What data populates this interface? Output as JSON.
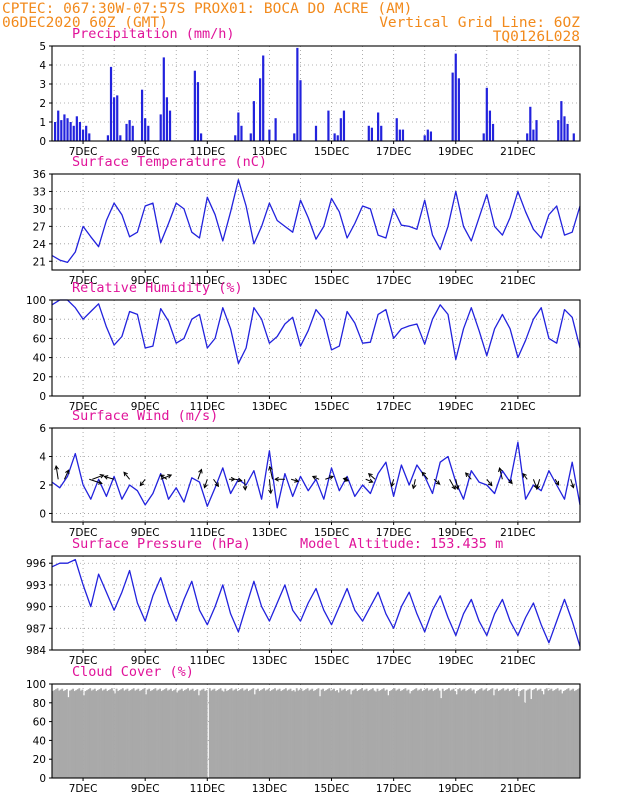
{
  "header": {
    "line1": "CPTEC:   067:30W-07:57S   PROX01: BOCA DO ACRE (AM)",
    "line2_left": "06DEC2020 60Z (GMT)",
    "line2_right": "Vertical Grid Line: 6OZ",
    "line3_right": "TQ0126L028"
  },
  "x_ticks": [
    "7DEC",
    "9DEC",
    "11DEC",
    "13DEC",
    "15DEC",
    "17DEC",
    "19DEC",
    "21DEC"
  ],
  "colors": {
    "header": "#f28a1c",
    "title": "#e0149a",
    "series": "#2222dd",
    "cloud": "#a9a9a9"
  },
  "chart_data": [
    {
      "type": "bar",
      "title": "Precipitation (mm/h)",
      "ylim": [
        0,
        5
      ],
      "yticks": [
        0,
        1,
        2,
        3,
        4,
        5
      ],
      "x_unit": "days since 6DEC 00Z",
      "x": [
        0.1,
        0.2,
        0.3,
        0.4,
        0.5,
        0.6,
        0.7,
        0.8,
        0.9,
        1.0,
        1.1,
        1.2,
        1.8,
        1.9,
        2.0,
        2.1,
        2.2,
        2.4,
        2.5,
        2.6,
        2.9,
        3.0,
        3.1,
        3.5,
        3.6,
        3.7,
        3.8,
        4.6,
        4.7,
        4.8,
        5.9,
        6.0,
        6.1,
        6.4,
        6.5,
        6.7,
        6.8,
        7.0,
        7.2,
        7.8,
        7.9,
        8.0,
        8.5,
        8.9,
        9.1,
        9.2,
        9.3,
        9.4,
        10.2,
        10.3,
        10.5,
        10.6,
        11.1,
        11.2,
        11.3,
        12.0,
        12.1,
        12.2,
        12.9,
        13.0,
        13.1,
        13.9,
        14.0,
        14.1,
        14.2,
        15.3,
        15.4,
        15.5,
        15.6,
        16.3,
        16.4,
        16.5,
        16.6,
        16.8
      ],
      "values": [
        1.0,
        1.6,
        1.1,
        1.4,
        1.2,
        1.0,
        0.8,
        1.3,
        1.0,
        0.6,
        0.8,
        0.4,
        0.3,
        3.9,
        2.3,
        2.4,
        0.3,
        0.9,
        1.1,
        0.8,
        2.7,
        1.2,
        0.8,
        1.4,
        4.4,
        2.3,
        1.6,
        3.7,
        3.1,
        0.4,
        0.3,
        1.5,
        0.8,
        0.4,
        2.1,
        3.3,
        4.5,
        0.6,
        1.2,
        0.4,
        4.9,
        3.2,
        0.8,
        1.6,
        0.4,
        0.3,
        1.2,
        1.6,
        0.8,
        0.7,
        1.5,
        0.8,
        1.2,
        0.6,
        0.6,
        0.3,
        0.6,
        0.5,
        3.6,
        4.6,
        3.3,
        0.4,
        2.8,
        1.6,
        0.9,
        0.4,
        1.8,
        0.6,
        1.1,
        1.1,
        2.1,
        1.3,
        0.9,
        0.4
      ]
    },
    {
      "type": "line",
      "title": "Surface Temperature (nC)",
      "ylim": [
        19.5,
        36
      ],
      "yticks": [
        21,
        24,
        27,
        30,
        33,
        36
      ],
      "x_unit": "days since 6DEC 00Z",
      "x": [
        0.0,
        0.25,
        0.5,
        0.75,
        1.0,
        1.25,
        1.5,
        1.75,
        2.0,
        2.25,
        2.5,
        2.75,
        3.0,
        3.25,
        3.5,
        3.75,
        4.0,
        4.25,
        4.5,
        4.75,
        5.0,
        5.25,
        5.5,
        5.75,
        6.0,
        6.25,
        6.5,
        6.75,
        7.0,
        7.25,
        7.5,
        7.75,
        8.0,
        8.25,
        8.5,
        8.75,
        9.0,
        9.25,
        9.5,
        9.75,
        10.0,
        10.25,
        10.5,
        10.75,
        11.0,
        11.25,
        11.5,
        11.75,
        12.0,
        12.25,
        12.5,
        12.75,
        13.0,
        13.25,
        13.5,
        13.75,
        14.0,
        14.25,
        14.5,
        14.75,
        15.0,
        15.25,
        15.5,
        15.75,
        16.0,
        16.25,
        16.5,
        16.75,
        17.0
      ],
      "values": [
        22.0,
        21.2,
        20.8,
        22.6,
        27.0,
        25.2,
        23.5,
        28.0,
        31.0,
        29.0,
        25.2,
        26.0,
        30.5,
        31.0,
        24.2,
        27.5,
        31.0,
        30.0,
        26.0,
        25.0,
        32.0,
        29.0,
        24.5,
        29.5,
        35.0,
        30.5,
        24.0,
        27.0,
        31.0,
        28.0,
        27.0,
        26.0,
        31.5,
        28.5,
        24.8,
        27.0,
        31.8,
        29.5,
        25.0,
        27.5,
        30.5,
        30.0,
        25.5,
        25.0,
        30.0,
        27.2,
        27.0,
        26.5,
        31.5,
        25.5,
        23.0,
        27.0,
        33.0,
        27.0,
        24.5,
        28.5,
        32.5,
        27.0,
        25.5,
        28.5,
        33.0,
        29.5,
        26.5,
        25.0,
        29.0,
        30.5,
        25.5,
        26.0,
        30.5
      ]
    },
    {
      "type": "line",
      "title": "Relative Humidity (%)",
      "ylim": [
        0,
        100
      ],
      "yticks": [
        0,
        20,
        40,
        60,
        80,
        100
      ],
      "x_unit": "days since 6DEC 00Z",
      "x": [
        0.0,
        0.25,
        0.5,
        0.75,
        1.0,
        1.25,
        1.5,
        1.75,
        2.0,
        2.25,
        2.5,
        2.75,
        3.0,
        3.25,
        3.5,
        3.75,
        4.0,
        4.25,
        4.5,
        4.75,
        5.0,
        5.25,
        5.5,
        5.75,
        6.0,
        6.25,
        6.5,
        6.75,
        7.0,
        7.25,
        7.5,
        7.75,
        8.0,
        8.25,
        8.5,
        8.75,
        9.0,
        9.25,
        9.5,
        9.75,
        10.0,
        10.25,
        10.5,
        10.75,
        11.0,
        11.25,
        11.5,
        11.75,
        12.0,
        12.25,
        12.5,
        12.75,
        13.0,
        13.25,
        13.5,
        13.75,
        14.0,
        14.25,
        14.5,
        14.75,
        15.0,
        15.25,
        15.5,
        15.75,
        16.0,
        16.25,
        16.5,
        16.75,
        17.0
      ],
      "values": [
        95.0,
        100.0,
        100.0,
        92.0,
        80.0,
        88.0,
        96.0,
        72.0,
        53.0,
        62.0,
        88.0,
        85.0,
        50.0,
        52.0,
        91.0,
        78.0,
        55.0,
        60.0,
        80.0,
        85.0,
        50.0,
        60.0,
        92.0,
        70.0,
        34.0,
        50.0,
        92.0,
        80.0,
        55.0,
        62.0,
        75.0,
        82.0,
        52.0,
        68.0,
        90.0,
        80.0,
        48.0,
        52.0,
        88.0,
        76.0,
        55.0,
        56.0,
        85.0,
        90.0,
        60.0,
        70.0,
        73.0,
        75.0,
        54.0,
        80.0,
        95.0,
        85.0,
        38.0,
        70.0,
        92.0,
        68.0,
        42.0,
        70.0,
        85.0,
        70.0,
        40.0,
        58.0,
        80.0,
        92.0,
        60.0,
        55.0,
        90.0,
        82.0,
        50.0
      ]
    },
    {
      "type": "line",
      "title": "Surface Wind (m/s)",
      "ylim": [
        -0.6,
        6
      ],
      "yticks": [
        0,
        2,
        4,
        6
      ],
      "x_unit": "days since 6DEC 00Z",
      "x": [
        0.0,
        0.25,
        0.5,
        0.75,
        1.0,
        1.25,
        1.5,
        1.75,
        2.0,
        2.25,
        2.5,
        2.75,
        3.0,
        3.25,
        3.5,
        3.75,
        4.0,
        4.25,
        4.5,
        4.75,
        5.0,
        5.25,
        5.5,
        5.75,
        6.0,
        6.25,
        6.5,
        6.75,
        7.0,
        7.25,
        7.5,
        7.75,
        8.0,
        8.25,
        8.5,
        8.75,
        9.0,
        9.25,
        9.5,
        9.75,
        10.0,
        10.25,
        10.5,
        10.75,
        11.0,
        11.25,
        11.5,
        11.75,
        12.0,
        12.25,
        12.5,
        12.75,
        13.0,
        13.25,
        13.5,
        13.75,
        14.0,
        14.25,
        14.5,
        14.75,
        15.0,
        15.25,
        15.5,
        15.75,
        16.0,
        16.25,
        16.5,
        16.75,
        17.0
      ],
      "values": [
        2.2,
        1.8,
        2.6,
        4.2,
        2.0,
        1.0,
        2.4,
        1.2,
        2.6,
        1.0,
        2.0,
        1.6,
        0.6,
        1.4,
        2.8,
        1.0,
        1.8,
        0.8,
        2.5,
        2.2,
        0.5,
        1.8,
        3.2,
        1.4,
        2.4,
        2.0,
        3.0,
        1.0,
        4.4,
        0.4,
        2.8,
        1.2,
        2.6,
        1.6,
        2.4,
        1.0,
        3.2,
        1.6,
        2.6,
        1.2,
        2.0,
        1.4,
        2.8,
        3.6,
        1.2,
        3.4,
        2.0,
        3.4,
        2.6,
        1.4,
        3.6,
        4.0,
        2.2,
        1.0,
        3.0,
        2.2,
        2.0,
        1.4,
        3.0,
        2.2,
        5.0,
        1.0,
        2.0,
        1.6,
        3.0,
        2.0,
        1.0,
        3.6,
        0.6
      ],
      "vectors": [
        {
          "x": 0.2,
          "u": -0.3,
          "v": 1.9
        },
        {
          "x": 0.4,
          "u": 0.6,
          "v": 1.3
        },
        {
          "x": 1.2,
          "u": 1.8,
          "v": -0.6
        },
        {
          "x": 1.3,
          "u": 1.6,
          "v": 0.6
        },
        {
          "x": 2.0,
          "u": -1.4,
          "v": 0.4
        },
        {
          "x": 2.5,
          "u": -0.8,
          "v": 1.0
        },
        {
          "x": 3.0,
          "u": -0.7,
          "v": -0.9
        },
        {
          "x": 3.5,
          "u": 1.5,
          "v": 0.6
        },
        {
          "x": 3.7,
          "u": -0.9,
          "v": 0.6
        },
        {
          "x": 4.7,
          "u": 0.5,
          "v": 1.4
        },
        {
          "x": 5.0,
          "u": -0.4,
          "v": -1.2
        },
        {
          "x": 5.2,
          "u": 0.7,
          "v": -1.0
        },
        {
          "x": 5.7,
          "u": 0.8,
          "v": 0.0
        },
        {
          "x": 5.9,
          "u": 0.9,
          "v": -0.2
        },
        {
          "x": 6.2,
          "u": 0.1,
          "v": -1.5
        },
        {
          "x": 7.0,
          "u": 0.2,
          "v": -2.0
        },
        {
          "x": 7.1,
          "u": -0.4,
          "v": 1.8
        },
        {
          "x": 7.5,
          "u": -1.4,
          "v": 0.0
        },
        {
          "x": 7.7,
          "u": 1.0,
          "v": -0.3
        },
        {
          "x": 8.6,
          "u": -0.9,
          "v": 0.4
        },
        {
          "x": 8.8,
          "u": 1.1,
          "v": 0.4
        },
        {
          "x": 9.4,
          "u": 0.6,
          "v": -0.2
        },
        {
          "x": 9.5,
          "u": -0.5,
          "v": 0.1
        },
        {
          "x": 10.1,
          "u": 1.0,
          "v": -0.4
        },
        {
          "x": 10.4,
          "u": -0.9,
          "v": 0.8
        },
        {
          "x": 11.0,
          "u": -0.3,
          "v": -1.0
        },
        {
          "x": 11.7,
          "u": -0.3,
          "v": -1.3
        },
        {
          "x": 12.1,
          "u": -0.8,
          "v": 1.0
        },
        {
          "x": 12.3,
          "u": 0.8,
          "v": -0.7
        },
        {
          "x": 12.8,
          "u": 0.8,
          "v": -1.4
        },
        {
          "x": 13.0,
          "u": 0.3,
          "v": -1.4
        },
        {
          "x": 13.5,
          "u": -0.8,
          "v": 0.9
        },
        {
          "x": 14.0,
          "u": 0.7,
          "v": -0.9
        },
        {
          "x": 14.5,
          "u": -0.4,
          "v": 1.6
        },
        {
          "x": 14.7,
          "u": 0.5,
          "v": -0.6
        },
        {
          "x": 15.3,
          "u": -0.6,
          "v": 0.8
        },
        {
          "x": 15.5,
          "u": 0.5,
          "v": -1.3
        },
        {
          "x": 15.7,
          "u": -0.4,
          "v": -1.4
        },
        {
          "x": 16.2,
          "u": 0.5,
          "v": -0.8
        },
        {
          "x": 16.7,
          "u": 0.4,
          "v": -1.2
        }
      ]
    },
    {
      "type": "line",
      "title": "Surface Pressure (hPa)",
      "annotation": "Model Altitude: 153.435 m",
      "ylim": [
        984,
        997
      ],
      "yticks": [
        984,
        987,
        990,
        993,
        996
      ],
      "x_unit": "days since 6DEC 00Z",
      "x": [
        0.0,
        0.25,
        0.5,
        0.75,
        1.0,
        1.25,
        1.5,
        1.75,
        2.0,
        2.25,
        2.5,
        2.75,
        3.0,
        3.25,
        3.5,
        3.75,
        4.0,
        4.25,
        4.5,
        4.75,
        5.0,
        5.25,
        5.5,
        5.75,
        6.0,
        6.25,
        6.5,
        6.75,
        7.0,
        7.25,
        7.5,
        7.75,
        8.0,
        8.25,
        8.5,
        8.75,
        9.0,
        9.25,
        9.5,
        9.75,
        10.0,
        10.25,
        10.5,
        10.75,
        11.0,
        11.25,
        11.5,
        11.75,
        12.0,
        12.25,
        12.5,
        12.75,
        13.0,
        13.25,
        13.5,
        13.75,
        14.0,
        14.25,
        14.5,
        14.75,
        15.0,
        15.25,
        15.5,
        15.75,
        16.0,
        16.25,
        16.5,
        16.75,
        17.0
      ],
      "values": [
        995.5,
        996.0,
        996.0,
        996.5,
        993.0,
        990.0,
        994.5,
        992.0,
        989.5,
        992.0,
        995.0,
        990.5,
        988.0,
        991.5,
        994.0,
        990.5,
        988.0,
        991.0,
        993.5,
        989.5,
        987.5,
        990.0,
        993.0,
        989.0,
        986.5,
        990.0,
        993.5,
        990.0,
        988.0,
        990.5,
        993.0,
        989.5,
        988.0,
        990.5,
        992.5,
        989.5,
        987.5,
        990.0,
        992.5,
        989.5,
        988.0,
        990.0,
        992.0,
        989.0,
        987.0,
        990.0,
        992.0,
        989.0,
        986.5,
        989.5,
        991.5,
        988.5,
        986.0,
        989.0,
        991.0,
        988.0,
        986.0,
        989.0,
        991.0,
        988.0,
        986.0,
        988.5,
        990.5,
        987.5,
        985.0,
        988.0,
        991.0,
        988.0,
        984.5
      ]
    },
    {
      "type": "bar",
      "title": "Cloud Cover (%)",
      "ylim": [
        0,
        100
      ],
      "yticks": [
        0,
        20,
        40,
        60,
        80,
        100
      ],
      "baseline": 94,
      "dips": [
        {
          "x": 0.5,
          "v": 86
        },
        {
          "x": 1.0,
          "v": 88
        },
        {
          "x": 2.0,
          "v": 90
        },
        {
          "x": 3.0,
          "v": 89
        },
        {
          "x": 4.0,
          "v": 91
        },
        {
          "x": 4.7,
          "v": 88
        },
        {
          "x": 5.0,
          "v": 0
        },
        {
          "x": 5.5,
          "v": 92
        },
        {
          "x": 6.5,
          "v": 89
        },
        {
          "x": 7.8,
          "v": 92
        },
        {
          "x": 8.6,
          "v": 87
        },
        {
          "x": 9.2,
          "v": 91
        },
        {
          "x": 9.6,
          "v": 89
        },
        {
          "x": 10.4,
          "v": 92
        },
        {
          "x": 10.8,
          "v": 88
        },
        {
          "x": 11.5,
          "v": 90
        },
        {
          "x": 12.5,
          "v": 85
        },
        {
          "x": 13.0,
          "v": 89
        },
        {
          "x": 13.6,
          "v": 90
        },
        {
          "x": 14.2,
          "v": 88
        },
        {
          "x": 15.0,
          "v": 87
        },
        {
          "x": 15.2,
          "v": 80
        },
        {
          "x": 15.4,
          "v": 84
        },
        {
          "x": 15.8,
          "v": 89
        },
        {
          "x": 16.4,
          "v": 90
        }
      ]
    }
  ]
}
